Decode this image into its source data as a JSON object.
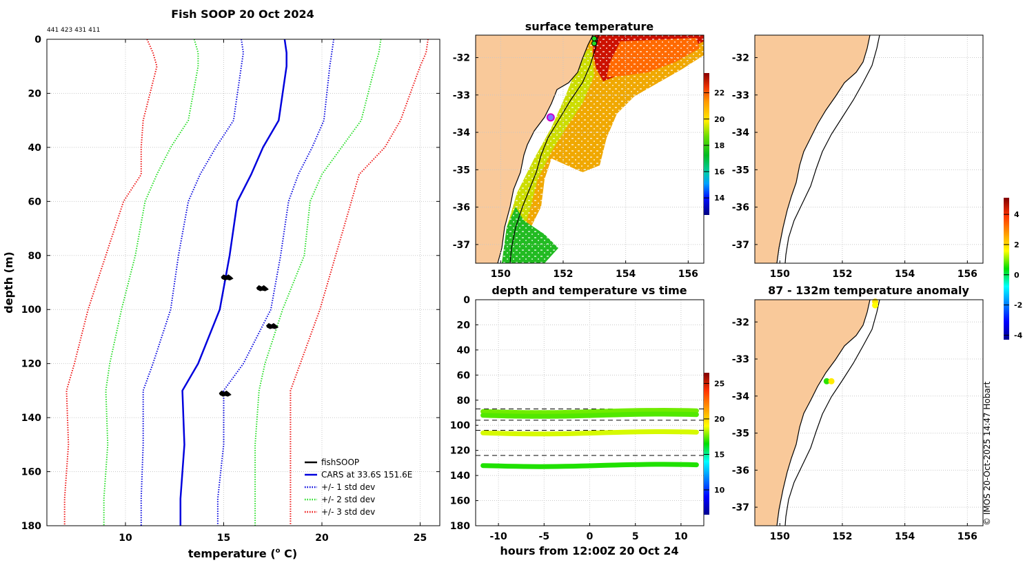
{
  "figure": {
    "main_title": "Fish SOOP 20 Oct 2024",
    "ids_label": "441 423 431 411",
    "credit": "© IMOS 20-Oct-2025 14:47 Hobart"
  },
  "chart_data": [
    {
      "id": "profile",
      "type": "line",
      "title": "Fish SOOP 20 Oct 2024",
      "xlabel": "temperature (o C)",
      "xlabel_main": "temperature (",
      "xlabel_sup": "o",
      "xlabel_end": " C)",
      "ylabel": "depth (m)",
      "xlim": [
        6,
        26
      ],
      "ylim": [
        0,
        180
      ],
      "xticks": [
        10,
        15,
        20,
        25
      ],
      "yticks": [
        0,
        20,
        40,
        60,
        80,
        100,
        120,
        140,
        160,
        180
      ],
      "legend": [
        {
          "label": "fishSOOP",
          "color": "#000000",
          "style": "solid"
        },
        {
          "label": "CARS at 33.6S 151.6E",
          "color": "#0000dd",
          "style": "solid"
        },
        {
          "label": "+/- 1 std dev",
          "color": "#0000dd",
          "style": "dotted"
        },
        {
          "label": "+/- 2 std dev",
          "color": "#22dd22",
          "style": "dotted"
        },
        {
          "label": "+/- 3 std dev",
          "color": "#ee1111",
          "style": "dotted"
        }
      ],
      "depth": [
        0,
        5,
        10,
        30,
        40,
        50,
        60,
        80,
        100,
        120,
        130,
        150,
        170,
        180
      ],
      "series": [
        {
          "name": "CARS mean",
          "color": "#0000dd",
          "style": "solid",
          "width": 2.5,
          "values": [
            18.1,
            18.2,
            18.2,
            17.8,
            17.0,
            16.4,
            15.7,
            15.3,
            14.8,
            13.7,
            12.9,
            13.0,
            12.8,
            12.8
          ]
        },
        {
          "name": "-1 std",
          "color": "#0000dd",
          "style": "dotted",
          "width": 2,
          "values": [
            15.9,
            16.0,
            15.9,
            15.5,
            14.6,
            13.8,
            13.2,
            12.7,
            12.3,
            11.4,
            10.9,
            10.9,
            10.8,
            10.8
          ]
        },
        {
          "name": "+1 std",
          "color": "#0000dd",
          "style": "dotted",
          "width": 2,
          "values": [
            20.6,
            20.5,
            20.4,
            20.1,
            19.5,
            18.8,
            18.3,
            17.9,
            17.4,
            16.0,
            15.0,
            15.0,
            14.7,
            14.7
          ]
        },
        {
          "name": "-2 std",
          "color": "#22dd22",
          "style": "dotted",
          "width": 2,
          "values": [
            13.5,
            13.7,
            13.7,
            13.2,
            12.3,
            11.6,
            11.0,
            10.5,
            9.8,
            9.2,
            9.0,
            9.1,
            8.9,
            8.9
          ]
        },
        {
          "name": "+2 std",
          "color": "#22dd22",
          "style": "dotted",
          "width": 2,
          "values": [
            23.0,
            22.9,
            22.7,
            22.0,
            21.0,
            20.0,
            19.4,
            19.1,
            18.0,
            17.1,
            16.8,
            16.6,
            16.6,
            16.6
          ]
        },
        {
          "name": "-3 std",
          "color": "#ee1111",
          "style": "dotted",
          "width": 2,
          "values": [
            11.1,
            11.4,
            11.6,
            10.9,
            10.8,
            10.8,
            9.9,
            9.0,
            8.1,
            7.4,
            7.0,
            7.1,
            6.9,
            6.9
          ]
        },
        {
          "name": "+3 std",
          "color": "#ee1111",
          "style": "dotted",
          "width": 2,
          "values": [
            25.4,
            25.3,
            25.0,
            24.0,
            23.2,
            21.9,
            21.5,
            20.7,
            19.9,
            18.9,
            18.4,
            18.4,
            18.4,
            18.4
          ]
        }
      ],
      "fishsoop_points": [
        {
          "temp": 15.1,
          "depth": 88
        },
        {
          "temp": 16.9,
          "depth": 92
        },
        {
          "temp": 17.4,
          "depth": 106
        },
        {
          "temp": 15.0,
          "depth": 131
        }
      ]
    },
    {
      "id": "sst",
      "type": "heatmap",
      "title": "surface temperature",
      "xlim": [
        149.2,
        156.5
      ],
      "ylim": [
        -37.5,
        -31.4
      ],
      "xticks": [
        150,
        152,
        154,
        156
      ],
      "yticks": [
        -32,
        -33,
        -34,
        -35,
        -36,
        -37
      ],
      "colorbar": {
        "range": [
          12.7,
          23.5
        ],
        "ticks": [
          14,
          16,
          18,
          20,
          22
        ]
      },
      "marker": {
        "lon": 151.6,
        "lat": -33.6
      }
    },
    {
      "id": "timeseries",
      "type": "scatter",
      "title": "depth and temperature vs time",
      "xlabel": "hours from 12:00Z 20 Oct 24",
      "xlim": [
        -12.5,
        12.5
      ],
      "ylim": [
        0,
        180
      ],
      "xticks": [
        -10,
        -5,
        0,
        5,
        10
      ],
      "yticks": [
        0,
        20,
        40,
        60,
        80,
        100,
        120,
        140,
        160,
        180
      ],
      "dashed_levels": [
        87,
        96,
        104,
        124
      ],
      "colorbar": {
        "range": [
          6.5,
          26.5
        ],
        "ticks": [
          10,
          15,
          20,
          25
        ]
      },
      "tracks": [
        {
          "depth": 89,
          "temp": 17.6
        },
        {
          "depth": 92,
          "temp": 17.3
        },
        {
          "depth": 106,
          "temp": 18.6
        },
        {
          "depth": 132,
          "temp": 16.8
        }
      ]
    },
    {
      "id": "map_top",
      "type": "scatter",
      "title": "",
      "xlim": [
        149.2,
        156.5
      ],
      "ylim": [
        -37.5,
        -31.4
      ],
      "xticks": [
        150,
        152,
        154,
        156
      ],
      "yticks": [
        -32,
        -33,
        -34,
        -35,
        -36,
        -37
      ]
    },
    {
      "id": "anomaly",
      "type": "scatter",
      "title": "87 - 132m temperature anomaly",
      "xlim": [
        149.2,
        156.5
      ],
      "ylim": [
        -37.5,
        -31.4
      ],
      "xticks": [
        150,
        152,
        154,
        156
      ],
      "yticks": [
        -32,
        -33,
        -34,
        -35,
        -36,
        -37
      ],
      "colorbar": {
        "range": [
          -4.3,
          5.1
        ],
        "ticks": [
          -4,
          -2,
          0,
          2,
          4
        ]
      },
      "points": [
        {
          "lon": 153.05,
          "lat": -31.45,
          "anom": 1.9
        },
        {
          "lon": 153.05,
          "lat": -31.55,
          "anom": 1.6
        },
        {
          "lon": 151.5,
          "lat": -33.6,
          "anom": 0.6
        },
        {
          "lon": 151.65,
          "lat": -33.6,
          "anom": 1.8
        }
      ]
    }
  ]
}
